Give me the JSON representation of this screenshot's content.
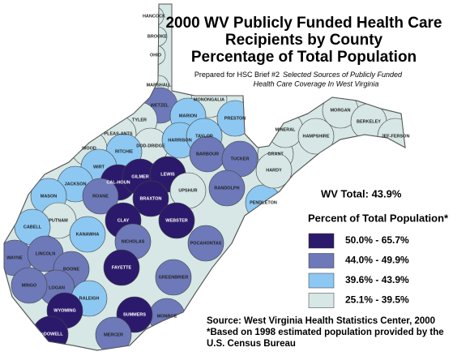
{
  "title_lines": [
    "2000 WV Publicly Funded Health Care",
    "Recipients by County",
    "Percentage of Total Population"
  ],
  "subtitle": {
    "prefix": "Prepared for HSC Brief #2",
    "italic_lines": [
      "Selected Sources of Publicly Funded",
      "Health Care Coverage In West Virginia"
    ]
  },
  "wv_total": "WV Total: 43.9%",
  "legend": {
    "title": "Percent of Total Population*",
    "items": [
      {
        "label": "50.0% - 65.7%",
        "color": "#2b1a6b"
      },
      {
        "label": "44.0% - 49.9%",
        "color": "#6d79b8"
      },
      {
        "label": "39.6% - 43.9%",
        "color": "#8cc8f2"
      },
      {
        "label": "25.1% - 39.5%",
        "color": "#d6e7e5"
      }
    ]
  },
  "source_lines": [
    "Source: West Virginia Health Statistics Center, 2000",
    "*Based on 1998 estimated population provided by the",
    "U.S. Census Bureau"
  ],
  "counties": [
    {
      "label": "HANCOCK",
      "color": "#d6e7e5"
    },
    {
      "label": "BROOKE",
      "color": "#d6e7e5"
    },
    {
      "label": "OHIO",
      "color": "#d6e7e5"
    },
    {
      "label": "MARSHALL",
      "color": "#d6e7e5"
    },
    {
      "label": "WETZEL",
      "color": "#6d79b8"
    },
    {
      "label": "MONONGALIA",
      "color": "#d6e7e5"
    },
    {
      "label": "MARION",
      "color": "#8cc8f2"
    },
    {
      "label": "PRESTON",
      "color": "#8cc8f2"
    },
    {
      "label": "TYLER",
      "color": "#d6e7e5"
    },
    {
      "label": "PLEAS-ANTS",
      "color": "#d6e7e5"
    },
    {
      "label": "WOOD",
      "color": "#d6e7e5"
    },
    {
      "label": "DOD-DRIDGE",
      "color": "#d6e7e5"
    },
    {
      "label": "HARRISON",
      "color": "#8cc8f2"
    },
    {
      "label": "TAYLOR",
      "color": "#8cc8f2"
    },
    {
      "label": "RITCHIE",
      "color": "#8cc8f2"
    },
    {
      "label": "BARBOUR",
      "color": "#6d79b8"
    },
    {
      "label": "TUCKER",
      "color": "#6d79b8"
    },
    {
      "label": "WIRT",
      "color": "#8cc8f2"
    },
    {
      "label": "CAL-HOUN",
      "color": "#2b1a6b"
    },
    {
      "label": "GILMER",
      "color": "#2b1a6b"
    },
    {
      "label": "LEWIS",
      "color": "#2b1a6b"
    },
    {
      "label": "UPSHUR",
      "color": "#d6e7e5"
    },
    {
      "label": "RANDOLPH",
      "color": "#6d79b8"
    },
    {
      "label": "JACKSON",
      "color": "#8cc8f2"
    },
    {
      "label": "ROANE",
      "color": "#6d79b8"
    },
    {
      "label": "BRAXTON",
      "color": "#2b1a6b"
    },
    {
      "label": "MASON",
      "color": "#8cc8f2"
    },
    {
      "label": "PUTNAM",
      "color": "#d6e7e5"
    },
    {
      "label": "CABELL",
      "color": "#8cc8f2"
    },
    {
      "label": "KANAWHA",
      "color": "#8cc8f2"
    },
    {
      "label": "CLAY",
      "color": "#2b1a6b"
    },
    {
      "label": "WEBSTER",
      "color": "#2b1a6b"
    },
    {
      "label": "NICHOLAS",
      "color": "#6d79b8"
    },
    {
      "label": "POCAHONTAS",
      "color": "#6d79b8"
    },
    {
      "label": "PENDLETON",
      "color": "#8cc8f2"
    },
    {
      "label": "GRANT",
      "color": "#d6e7e5"
    },
    {
      "label": "HARDY",
      "color": "#d6e7e5"
    },
    {
      "label": "MINERAL",
      "color": "#d6e7e5"
    },
    {
      "label": "HAMPSHIRE",
      "color": "#d6e7e5"
    },
    {
      "label": "MORGAN",
      "color": "#d6e7e5"
    },
    {
      "label": "BERKELEY",
      "color": "#d6e7e5"
    },
    {
      "label": "JEF-FERSON",
      "color": "#d6e7e5"
    },
    {
      "label": "WAYNE",
      "color": "#6d79b8"
    },
    {
      "label": "LINCOLN",
      "color": "#6d79b8"
    },
    {
      "label": "BOONE",
      "color": "#6d79b8"
    },
    {
      "label": "LOGAN",
      "color": "#6d79b8"
    },
    {
      "label": "MINGO",
      "color": "#6d79b8"
    },
    {
      "label": "FAYETTE",
      "color": "#2b1a6b"
    },
    {
      "label": "GREENBRIER",
      "color": "#6d79b8"
    },
    {
      "label": "RALEIGH",
      "color": "#8cc8f2"
    },
    {
      "label": "MONROE",
      "color": "#6d79b8"
    },
    {
      "label": "SUMMERS",
      "color": "#2b1a6b"
    },
    {
      "label": "WYOMING",
      "color": "#2b1a6b"
    },
    {
      "label": "McDOWELL",
      "color": "#2b1a6b"
    },
    {
      "label": "MERCER",
      "color": "#6d79b8"
    }
  ]
}
